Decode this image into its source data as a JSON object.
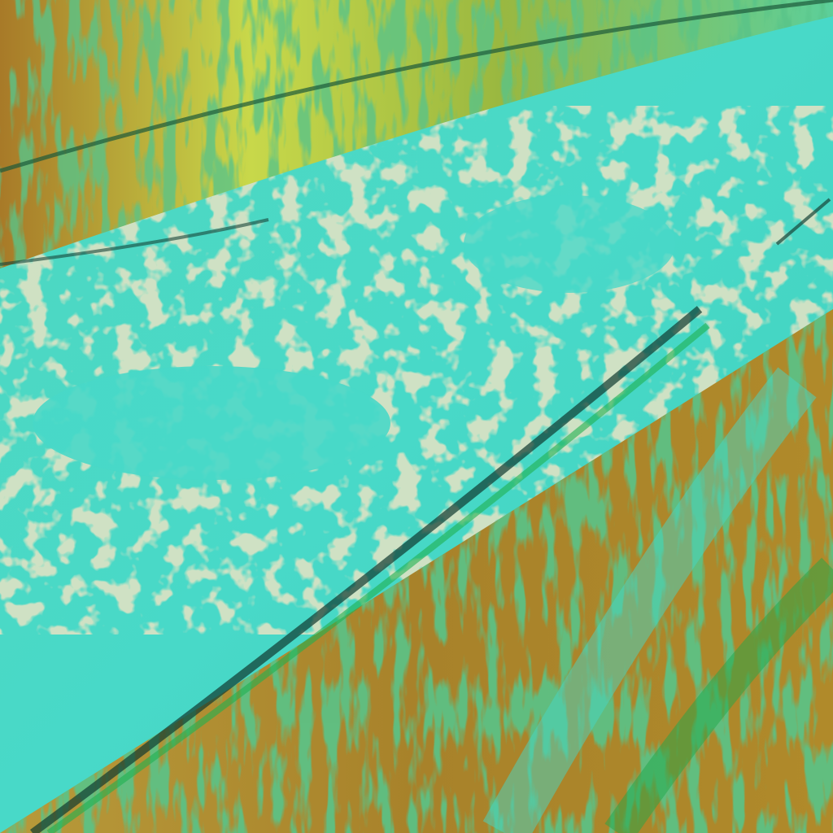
{
  "image": {
    "kind": "false-color satellite imagery",
    "colors": {
      "cloud_cyan": "#45d8c6",
      "cloud_tan": "#c9c48a",
      "terrain_olive": "#b08a2a",
      "vegetation_green": "#1fa84a",
      "highlight_yellow": "#c8d84a",
      "shadow_dark": "#103a30"
    }
  }
}
